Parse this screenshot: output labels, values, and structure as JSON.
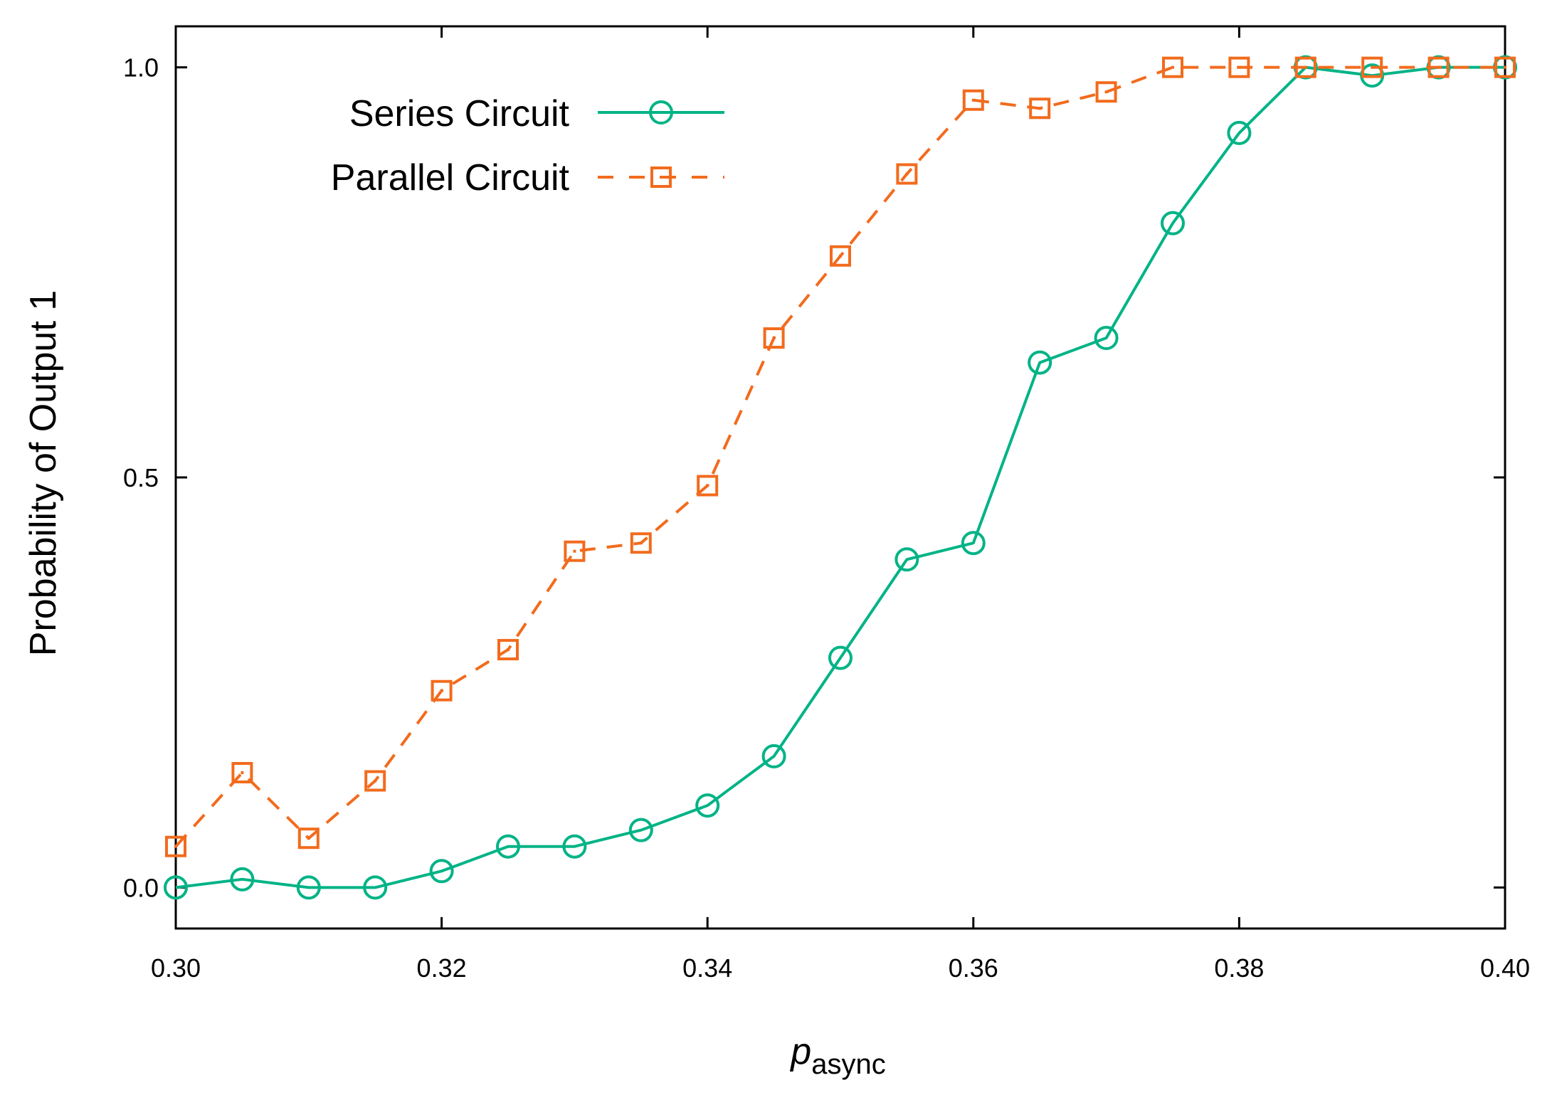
{
  "chart_data": {
    "type": "line",
    "title": "",
    "xlabel": "p",
    "xlabel_sub": "async",
    "ylabel": "Probability of Output 1",
    "xlim": [
      0.3,
      0.4
    ],
    "ylim": [
      -0.05,
      1.05
    ],
    "x_ticks": [
      "0.30",
      "0.32",
      "0.34",
      "0.36",
      "0.38",
      "0.40"
    ],
    "y_ticks": [
      "0.0",
      "0.5",
      "1.0"
    ],
    "grid": false,
    "legend_position": "top-left",
    "x": [
      0.3,
      0.305,
      0.31,
      0.315,
      0.32,
      0.325,
      0.33,
      0.335,
      0.34,
      0.345,
      0.35,
      0.355,
      0.36,
      0.365,
      0.37,
      0.375,
      0.38,
      0.385,
      0.39,
      0.395,
      0.4
    ],
    "series": [
      {
        "name": "Series Circuit",
        "color": "#00b386",
        "marker": "circle",
        "line": "solid",
        "values": [
          0.0,
          0.01,
          0.0,
          0.0,
          0.02,
          0.05,
          0.05,
          0.07,
          0.1,
          0.16,
          0.28,
          0.4,
          0.42,
          0.64,
          0.67,
          0.81,
          0.92,
          1.0,
          0.99,
          1.0,
          1.0
        ]
      },
      {
        "name": "Parallel Circuit",
        "color": "#f26b1d",
        "marker": "square",
        "line": "dashed",
        "values": [
          0.05,
          0.14,
          0.06,
          0.13,
          0.24,
          0.29,
          0.41,
          0.42,
          0.49,
          0.67,
          0.77,
          0.87,
          0.96,
          0.95,
          0.97,
          1.0,
          1.0,
          1.0,
          1.0,
          1.0,
          1.0
        ]
      }
    ]
  }
}
